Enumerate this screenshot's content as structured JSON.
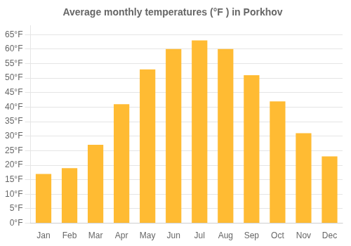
{
  "chart_data": {
    "type": "bar",
    "title": "Average monthly temperatures (°F ) in Porkhov",
    "categories": [
      "Jan",
      "Feb",
      "Mar",
      "Apr",
      "May",
      "Jun",
      "Jul",
      "Aug",
      "Sep",
      "Oct",
      "Nov",
      "Dec"
    ],
    "values": [
      17,
      19,
      27,
      41,
      53,
      60,
      63,
      60,
      51,
      42,
      31,
      23
    ],
    "color": "#FFBB33",
    "ylim": [
      0,
      68
    ],
    "yticks": [
      {
        "value": 0,
        "label": "0°F"
      },
      {
        "value": 5,
        "label": "5°F"
      },
      {
        "value": 10,
        "label": "10°F"
      },
      {
        "value": 15,
        "label": "15°F"
      },
      {
        "value": 20,
        "label": "20°F"
      },
      {
        "value": 25,
        "label": "25°F"
      },
      {
        "value": 30,
        "label": "30°F"
      },
      {
        "value": 35,
        "label": "35°F"
      },
      {
        "value": 40,
        "label": "40°F"
      },
      {
        "value": 45,
        "label": "45°F"
      },
      {
        "value": 50,
        "label": "50°F"
      },
      {
        "value": 55,
        "label": "55°F"
      },
      {
        "value": 60,
        "label": "60°F"
      },
      {
        "value": 65,
        "label": "65°F"
      }
    ],
    "grid": true
  }
}
